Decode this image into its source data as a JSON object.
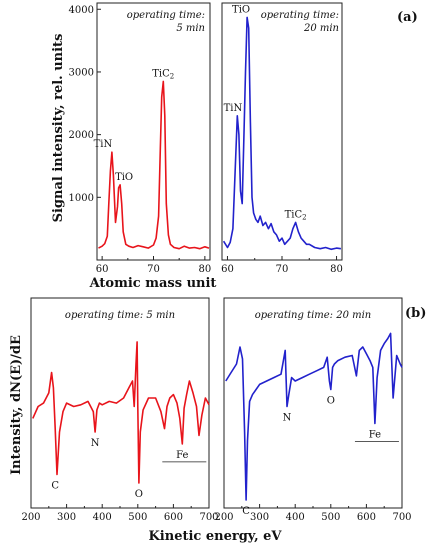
{
  "figure": {
    "panel_a_label": "(a)",
    "panel_b_label": "(b)",
    "a_ylabel": "Signal intensity, rel. units",
    "a_xlabel": "Atomic mass unit",
    "b_ylabel": "Intensity, dN(E)/dE",
    "b_xlabel": "Kinetic energy, eV"
  },
  "chart_data": [
    {
      "type": "line",
      "panel": "(a) left",
      "annotation": [
        "operating time:",
        "5 min"
      ],
      "xlim": [
        59,
        81
      ],
      "ylim": [
        0,
        4100
      ],
      "xticks": [
        60,
        70,
        80
      ],
      "yticks": [
        1000,
        2000,
        3000,
        4000
      ],
      "color": "#e8141b",
      "x": [
        59.3,
        60,
        60.5,
        61,
        61.3,
        61.6,
        61.9,
        62.2,
        62.6,
        63,
        63.2,
        63.5,
        63.8,
        64.1,
        64.6,
        65.2,
        66,
        67,
        68,
        69,
        70,
        70.5,
        71,
        71.3,
        71.6,
        71.9,
        72.2,
        72.5,
        72.9,
        73.3,
        74,
        75,
        76,
        77,
        78,
        79,
        80,
        80.8
      ],
      "y": [
        190,
        220,
        260,
        380,
        900,
        1420,
        1720,
        1350,
        600,
        850,
        1150,
        1200,
        900,
        450,
        250,
        220,
        200,
        230,
        210,
        190,
        240,
        350,
        700,
        1700,
        2600,
        2850,
        2300,
        900,
        400,
        250,
        200,
        180,
        220,
        190,
        200,
        180,
        210,
        190
      ],
      "peak_labels": [
        {
          "text": "TiN",
          "x": 61.9,
          "y": 1720
        },
        {
          "text": "TiO",
          "x": 63.5,
          "y": 1200
        },
        {
          "text": "TiC",
          "sub": "2",
          "x": 71.9,
          "y": 2850
        }
      ]
    },
    {
      "type": "line",
      "panel": "(a) right",
      "annotation": [
        "operating time:",
        "20 min"
      ],
      "xlim": [
        59,
        81
      ],
      "ylim": [
        0,
        4100
      ],
      "xticks": [
        60,
        70,
        80
      ],
      "color": "#2222cc",
      "x": [
        59.3,
        60,
        60.5,
        61,
        61.4,
        61.8,
        62.1,
        62.4,
        62.7,
        63,
        63.3,
        63.6,
        63.9,
        64.2,
        64.5,
        64.8,
        65.2,
        65.6,
        66,
        66.5,
        67,
        67.5,
        68,
        68.5,
        69,
        69.5,
        70,
        70.5,
        71,
        71.5,
        72,
        72.5,
        73,
        73.5,
        74,
        74.5,
        75,
        76,
        77,
        78,
        79,
        80,
        80.8
      ],
      "y": [
        300,
        200,
        280,
        500,
        1400,
        2300,
        2000,
        1100,
        900,
        1900,
        3000,
        3870,
        3700,
        2200,
        1000,
        750,
        650,
        600,
        700,
        550,
        600,
        500,
        580,
        450,
        400,
        300,
        350,
        250,
        300,
        350,
        500,
        600,
        450,
        350,
        300,
        250,
        250,
        200,
        180,
        200,
        170,
        190,
        180
      ],
      "peak_labels": [
        {
          "text": "TiN",
          "x": 62.1,
          "y": 2300
        },
        {
          "text": "TiO",
          "x": 63.6,
          "y": 3870
        },
        {
          "text": "TiC",
          "sub": "2",
          "x": 72.5,
          "y": 600
        }
      ]
    },
    {
      "type": "line",
      "panel": "(b) left",
      "annotation": [
        "operating time: 5 min"
      ],
      "xlim": [
        200,
        700
      ],
      "ylim": [
        0,
        100
      ],
      "xticks": [
        200,
        300,
        400,
        500,
        600,
        700
      ],
      "color": "#e8141b",
      "x": [
        205,
        220,
        235,
        250,
        258,
        263,
        268,
        273,
        280,
        290,
        300,
        320,
        340,
        360,
        375,
        380,
        385,
        392,
        400,
        420,
        440,
        460,
        475,
        485,
        490,
        495,
        498,
        500,
        503,
        507,
        515,
        530,
        550,
        565,
        575,
        582,
        590,
        600,
        610,
        618,
        625,
        630,
        637,
        645,
        655,
        665,
        672,
        680,
        690,
        700
      ],
      "y": [
        48,
        55,
        57,
        63,
        75,
        66,
        42,
        15,
        40,
        52,
        57,
        55,
        56,
        58,
        52,
        40,
        53,
        57,
        56,
        58,
        57,
        60,
        66,
        70,
        55,
        80,
        93,
        55,
        10,
        40,
        53,
        60,
        60,
        52,
        42,
        55,
        60,
        62,
        57,
        48,
        33,
        54,
        62,
        70,
        63,
        55,
        38,
        50,
        60,
        56
      ],
      "peak_labels": [
        {
          "text": "C",
          "x": 268,
          "y": 15
        },
        {
          "text": "N",
          "x": 380,
          "y": 40
        },
        {
          "text": "O",
          "x": 503,
          "y": 10
        },
        {
          "text": "Fe",
          "x": 625,
          "y": 33
        }
      ]
    },
    {
      "type": "line",
      "panel": "(b) right",
      "annotation": [
        "operating time: 20 min"
      ],
      "xlim": [
        200,
        700
      ],
      "ylim": [
        0,
        100
      ],
      "xticks": [
        200,
        300,
        400,
        500,
        600,
        700
      ],
      "color": "#2222cc",
      "x": [
        205,
        220,
        235,
        245,
        252,
        258,
        262,
        266,
        272,
        280,
        300,
        320,
        340,
        360,
        372,
        377,
        382,
        390,
        400,
        420,
        440,
        460,
        480,
        490,
        496,
        500,
        505,
        510,
        520,
        540,
        560,
        572,
        580,
        590,
        600,
        610,
        618,
        624,
        630,
        640,
        650,
        660,
        668,
        675,
        685,
        695,
        700
      ],
      "y": [
        70,
        75,
        80,
        90,
        83,
        40,
        0,
        35,
        58,
        62,
        68,
        70,
        72,
        74,
        88,
        55,
        62,
        72,
        70,
        72,
        74,
        76,
        78,
        84,
        70,
        65,
        78,
        80,
        82,
        84,
        85,
        73,
        88,
        90,
        86,
        82,
        78,
        45,
        72,
        88,
        92,
        95,
        98,
        60,
        85,
        80,
        78
      ],
      "peak_labels": [
        {
          "text": "C",
          "x": 262,
          "y": 0
        },
        {
          "text": "N",
          "x": 377,
          "y": 55
        },
        {
          "text": "O",
          "x": 500,
          "y": 65
        },
        {
          "text": "Fe",
          "x": 624,
          "y": 45
        }
      ]
    }
  ]
}
